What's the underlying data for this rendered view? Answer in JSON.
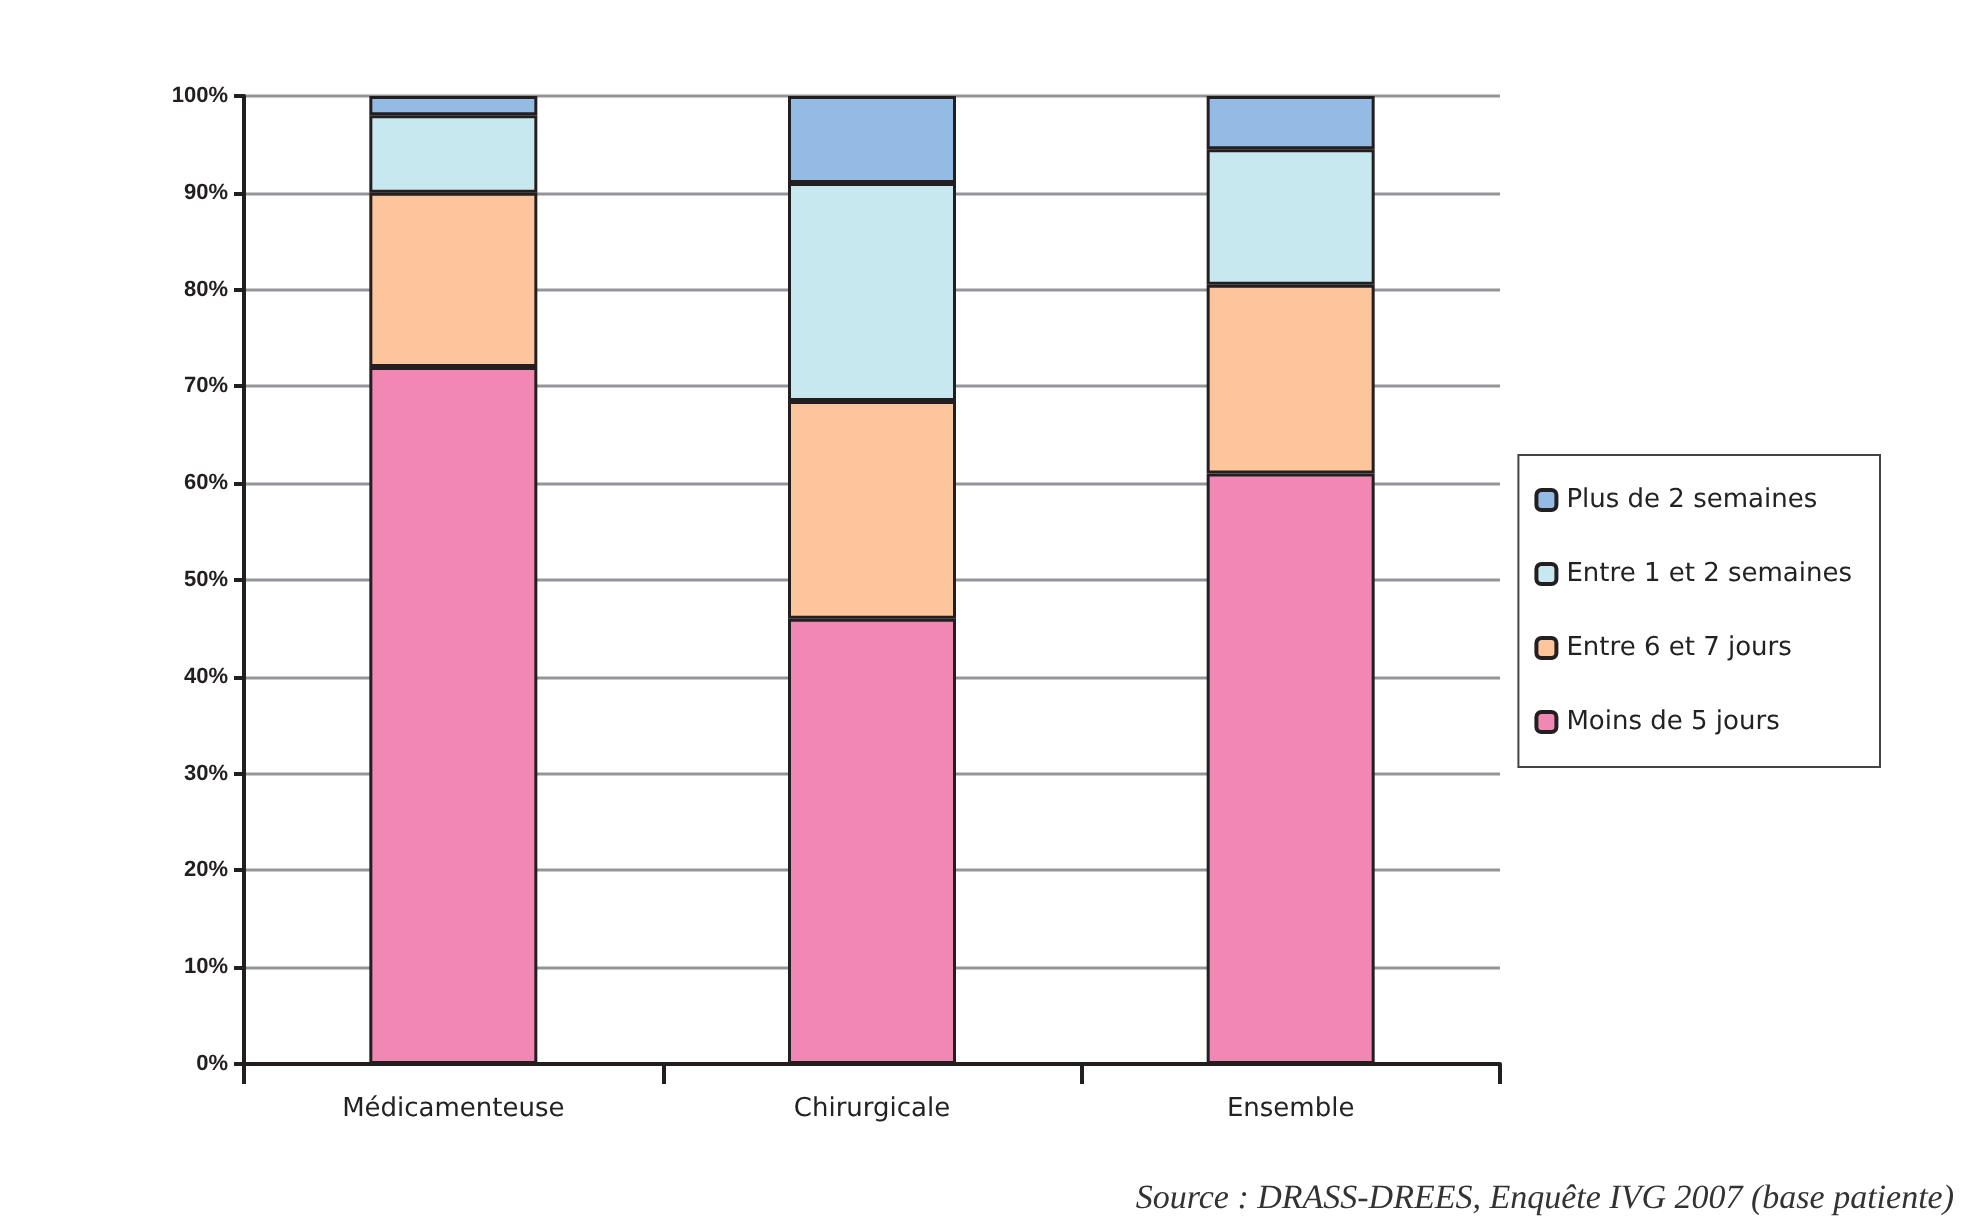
{
  "chart_data": {
    "type": "bar",
    "stacked": true,
    "categories": [
      "Médicamenteuse",
      "Chirurgicale",
      "Ensemble"
    ],
    "series": [
      {
        "name": "Moins de 5 jours",
        "color": "#f188b4",
        "values": [
          72,
          46,
          61
        ]
      },
      {
        "name": "Entre 6 et 7 jours",
        "color": "#fdc59b",
        "values": [
          18,
          22.5,
          19.5
        ]
      },
      {
        "name": "Entre 1 et 2 semaines",
        "color": "#c8e8ef",
        "values": [
          8,
          22.5,
          14
        ]
      },
      {
        "name": "Plus de 2 semaines",
        "color": "#93bbe3",
        "values": [
          2,
          9,
          5.5
        ]
      }
    ],
    "ylim": [
      0,
      100
    ],
    "yticks": [
      {
        "value": 0,
        "label": "0%"
      },
      {
        "value": 10,
        "label": "10%"
      },
      {
        "value": 20,
        "label": "20%"
      },
      {
        "value": 30,
        "label": "30%"
      },
      {
        "value": 40,
        "label": "40%"
      },
      {
        "value": 50,
        "label": "50%"
      },
      {
        "value": 60,
        "label": "60%"
      },
      {
        "value": 70,
        "label": "70%"
      },
      {
        "value": 80,
        "label": "80%"
      },
      {
        "value": 90,
        "label": "90%"
      },
      {
        "value": 100,
        "label": "100%"
      }
    ],
    "grid": "y",
    "legend": "right",
    "annotations": [
      "Source : DRASS-DREES, Enquête IVG 2007 (base patiente)"
    ]
  }
}
